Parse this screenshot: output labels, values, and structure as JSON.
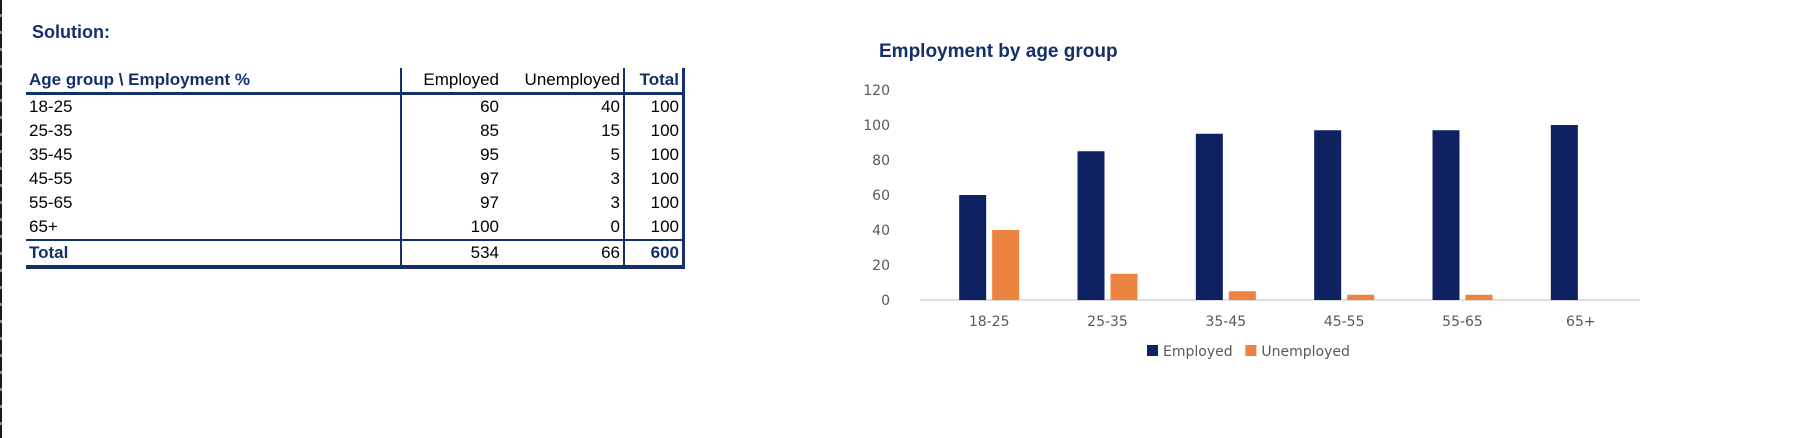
{
  "solution_heading": "Solution:",
  "table": {
    "headers": [
      "Age group \\ Employment %",
      "Employed",
      "Unemployed",
      "Total"
    ],
    "rows": [
      [
        "18-25",
        "60",
        "40",
        "100"
      ],
      [
        "25-35",
        "85",
        "15",
        "100"
      ],
      [
        "35-45",
        "95",
        "5",
        "100"
      ],
      [
        "45-55",
        "97",
        "3",
        "100"
      ],
      [
        "55-65",
        "97",
        "3",
        "100"
      ],
      [
        "65+",
        "100",
        "0",
        "100"
      ]
    ],
    "total_row": [
      "Total",
      "534",
      "66",
      "600"
    ]
  },
  "colors": {
    "navy": "#14306b",
    "employed": "#0f2160",
    "unemployed": "#ec833e",
    "axis": "#bfbfbf",
    "ticks": "#595959"
  },
  "chart_data": {
    "type": "bar",
    "title": "Employment by age group",
    "categories": [
      "18-25",
      "25-35",
      "35-45",
      "45-55",
      "55-65",
      "65+"
    ],
    "series": [
      {
        "name": "Employed",
        "values": [
          60,
          85,
          95,
          97,
          97,
          100
        ]
      },
      {
        "name": "Unemployed",
        "values": [
          40,
          15,
          5,
          3,
          3,
          0
        ]
      }
    ],
    "ylim": [
      0,
      120
    ],
    "yticks": [
      "0",
      "20",
      "40",
      "60",
      "80",
      "100",
      "120"
    ],
    "legend_position": "bottom",
    "grid": false
  }
}
